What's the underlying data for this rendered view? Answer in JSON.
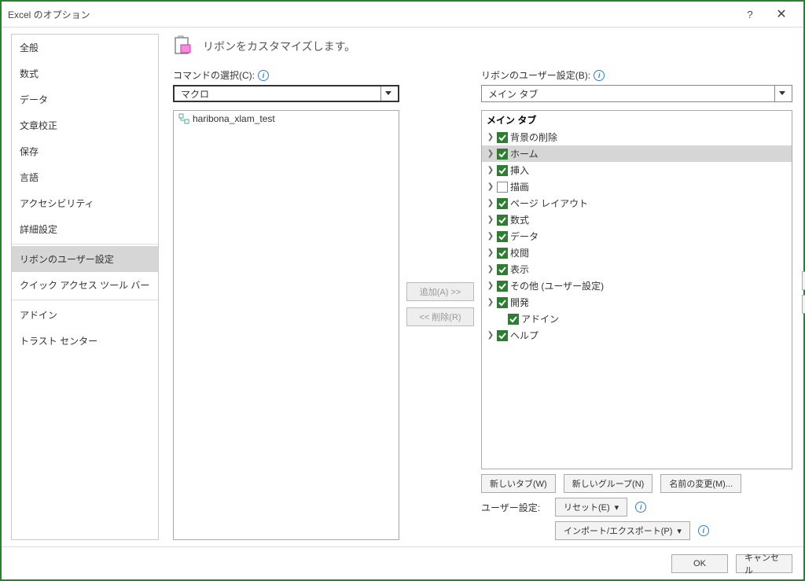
{
  "window": {
    "title": "Excel のオプション"
  },
  "sidebar": {
    "items": [
      "全般",
      "数式",
      "データ",
      "文章校正",
      "保存",
      "言語",
      "アクセシビリティ",
      "詳細設定",
      "リボンのユーザー設定",
      "クイック アクセス ツール バー",
      "アドイン",
      "トラスト センター"
    ],
    "selected_index": 8
  },
  "header": {
    "title": "リボンをカスタマイズします。"
  },
  "left": {
    "label": "コマンドの選択(C):",
    "dropdown": "マクロ",
    "items": [
      "haribona_xlam_test"
    ]
  },
  "mid": {
    "add": "追加(A) >>",
    "remove": "<< 削除(R)"
  },
  "right": {
    "label": "リボンのユーザー設定(B):",
    "dropdown": "メイン タブ",
    "tree_header": "メイン タブ",
    "items": [
      {
        "label": "背景の削除",
        "checked": true,
        "expandable": true
      },
      {
        "label": "ホーム",
        "checked": true,
        "expandable": true,
        "selected": true
      },
      {
        "label": "挿入",
        "checked": true,
        "expandable": true
      },
      {
        "label": "描画",
        "checked": false,
        "expandable": true
      },
      {
        "label": "ページ レイアウト",
        "checked": true,
        "expandable": true
      },
      {
        "label": "数式",
        "checked": true,
        "expandable": true
      },
      {
        "label": "データ",
        "checked": true,
        "expandable": true
      },
      {
        "label": "校閲",
        "checked": true,
        "expandable": true
      },
      {
        "label": "表示",
        "checked": true,
        "expandable": true
      },
      {
        "label": "その他 (ユーザー設定)",
        "checked": true,
        "expandable": true
      },
      {
        "label": "開発",
        "checked": true,
        "expandable": true
      },
      {
        "label": "アドイン",
        "checked": true,
        "expandable": false,
        "indent": true
      },
      {
        "label": "ヘルプ",
        "checked": true,
        "expandable": true
      }
    ]
  },
  "actions": {
    "new_tab": "新しいタブ(W)",
    "new_group": "新しいグループ(N)",
    "rename": "名前の変更(M)...",
    "custom_label": "ユーザー設定:",
    "reset": "リセット(E)",
    "import_export": "インポート/エクスポート(P)"
  },
  "footer": {
    "ok": "OK",
    "cancel": "キャンセル"
  }
}
